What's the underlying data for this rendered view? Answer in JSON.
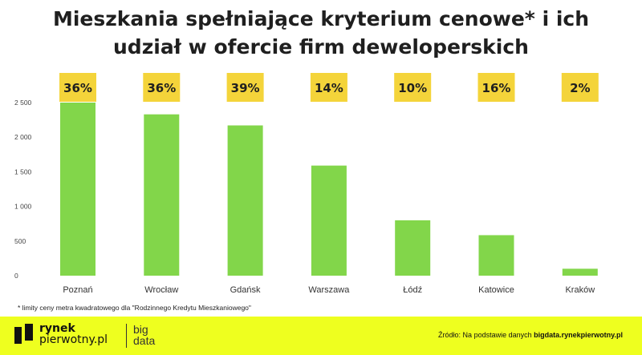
{
  "title_line1": "Mieszkania spełniające kryterium cenowe* i ich",
  "title_line2": "udział w ofercie firm deweloperskich",
  "footnote": "* limity ceny metra kwadratowego dla \"Rodzinnego Kredytu Mieszkaniowego\"",
  "footer": {
    "logo_line1": "rynek",
    "logo_line2": "pierwotny.pl",
    "bigdata_line1": "big",
    "bigdata_line2": "data",
    "source_label": "Źródło: Na podstawie danych",
    "source_site": "bigdata.rynekpierwotny.pl"
  },
  "colors": {
    "bar": "#82d64a",
    "badge": "#f4d43a",
    "footer": "#eeff1f"
  },
  "chart_data": {
    "type": "bar",
    "categories": [
      "Poznań",
      "Wrocław",
      "Gdańsk",
      "Warszawa",
      "Łódź",
      "Katowice",
      "Kraków"
    ],
    "values": [
      2500,
      2330,
      2170,
      1590,
      800,
      585,
      100
    ],
    "badges": [
      "36%",
      "36%",
      "39%",
      "14%",
      "10%",
      "16%",
      "2%"
    ],
    "yticks": [
      0,
      500,
      1000,
      1500,
      2000,
      2500
    ],
    "ytick_labels": [
      "0",
      "500",
      "1 000",
      "1 500",
      "2 000",
      "2 500"
    ],
    "ylim": [
      0,
      2500
    ],
    "grid": false,
    "xlabel": "",
    "ylabel": ""
  }
}
